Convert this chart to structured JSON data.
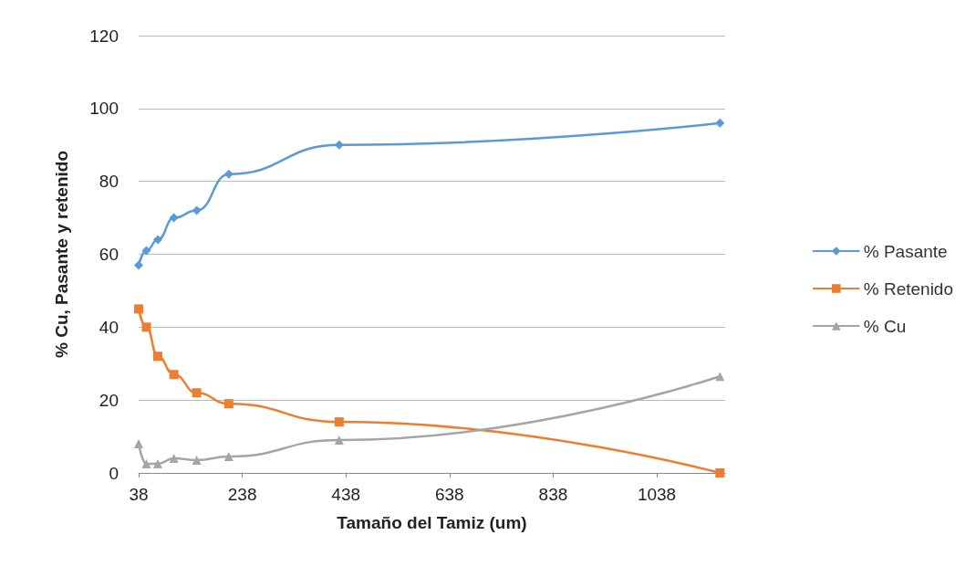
{
  "chart_data": {
    "type": "line",
    "xlabel": "Tamaño del Tamiz (um)",
    "ylabel": "% Cu, Pasante y retenido",
    "x": [
      38,
      53,
      75,
      106,
      150,
      212,
      425,
      1160
    ],
    "series": [
      {
        "name": "% Pasante",
        "color": "#5b9bd5",
        "marker": "diamond",
        "values": [
          57,
          61,
          64,
          70,
          72,
          82,
          90,
          96
        ]
      },
      {
        "name": "% Retenido",
        "color": "#ed7d31",
        "marker": "square",
        "values": [
          45,
          40,
          32,
          27,
          22,
          19,
          14,
          0
        ]
      },
      {
        "name": "% Cu",
        "color": "#a5a5a5",
        "marker": "triangle",
        "values": [
          8,
          2.5,
          2.5,
          4,
          3.5,
          4.5,
          9,
          26.5
        ]
      }
    ],
    "xlim": [
      38,
      1170
    ],
    "xticks": [
      38,
      238,
      438,
      638,
      838,
      1038
    ],
    "ylim": [
      0,
      120
    ],
    "yticks": [
      0,
      20,
      40,
      60,
      80,
      100,
      120
    ],
    "grid": "y",
    "legend": "right"
  }
}
